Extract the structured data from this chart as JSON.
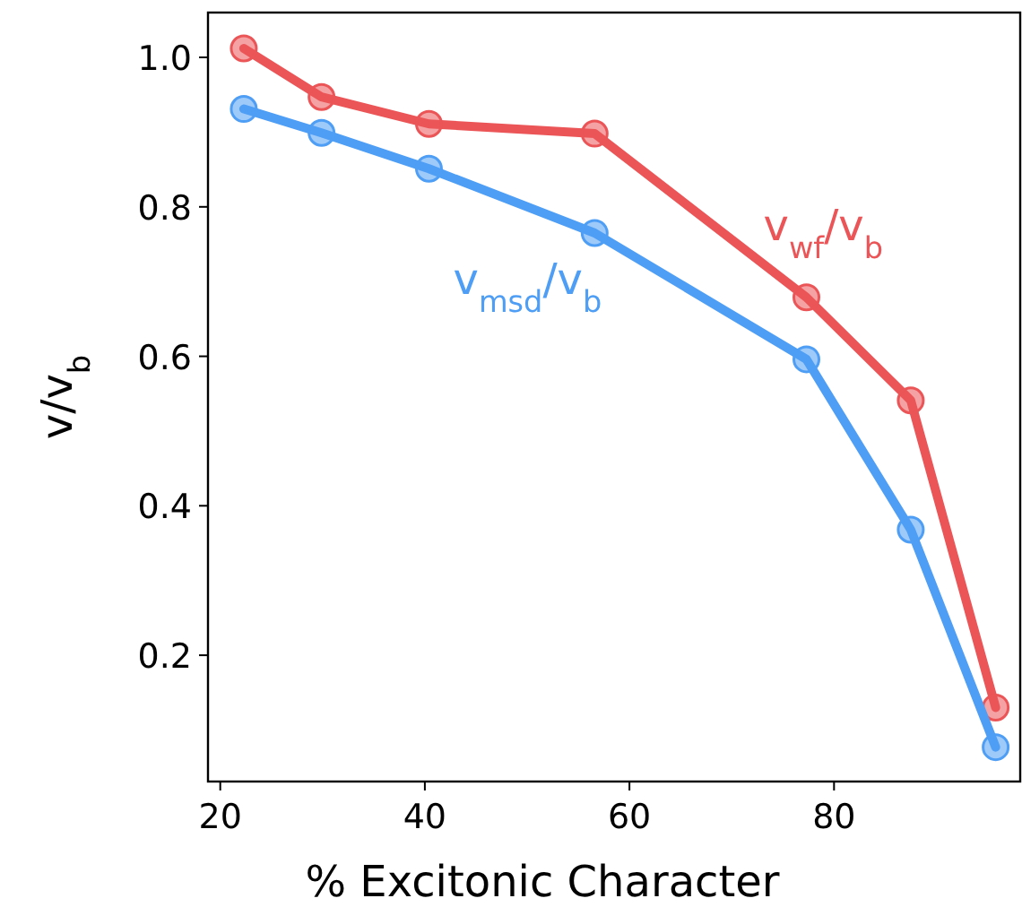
{
  "chart_data": {
    "type": "line",
    "xlabel": "% Excitonic Character",
    "ylabel": "v/v$_{b}$",
    "x": [
      22.3,
      29.9,
      40.4,
      56.6,
      77.3,
      87.5,
      95.8
    ],
    "xlim": [
      18.8,
      98.2
    ],
    "xticks": [
      20,
      40,
      60,
      80
    ],
    "ylim": [
      0.031,
      1.06
    ],
    "yticks": [
      0.2,
      0.4,
      0.6,
      0.8,
      {
        "value": 1,
        "label": "1.0"
      }
    ],
    "marker": "circle",
    "grid": false,
    "series": [
      {
        "name": "v$_{wf}$/v$_{b}$",
        "color": "#eb5557",
        "values": [
          1.012,
          0.947,
          0.911,
          0.898,
          0.679,
          0.541,
          0.13
        ]
      },
      {
        "name": "v$_{msd}$/v$_{b}$",
        "color": "#4e9ef5",
        "values": [
          0.931,
          0.899,
          0.851,
          0.765,
          0.596,
          0.368,
          0.077
        ]
      }
    ]
  }
}
